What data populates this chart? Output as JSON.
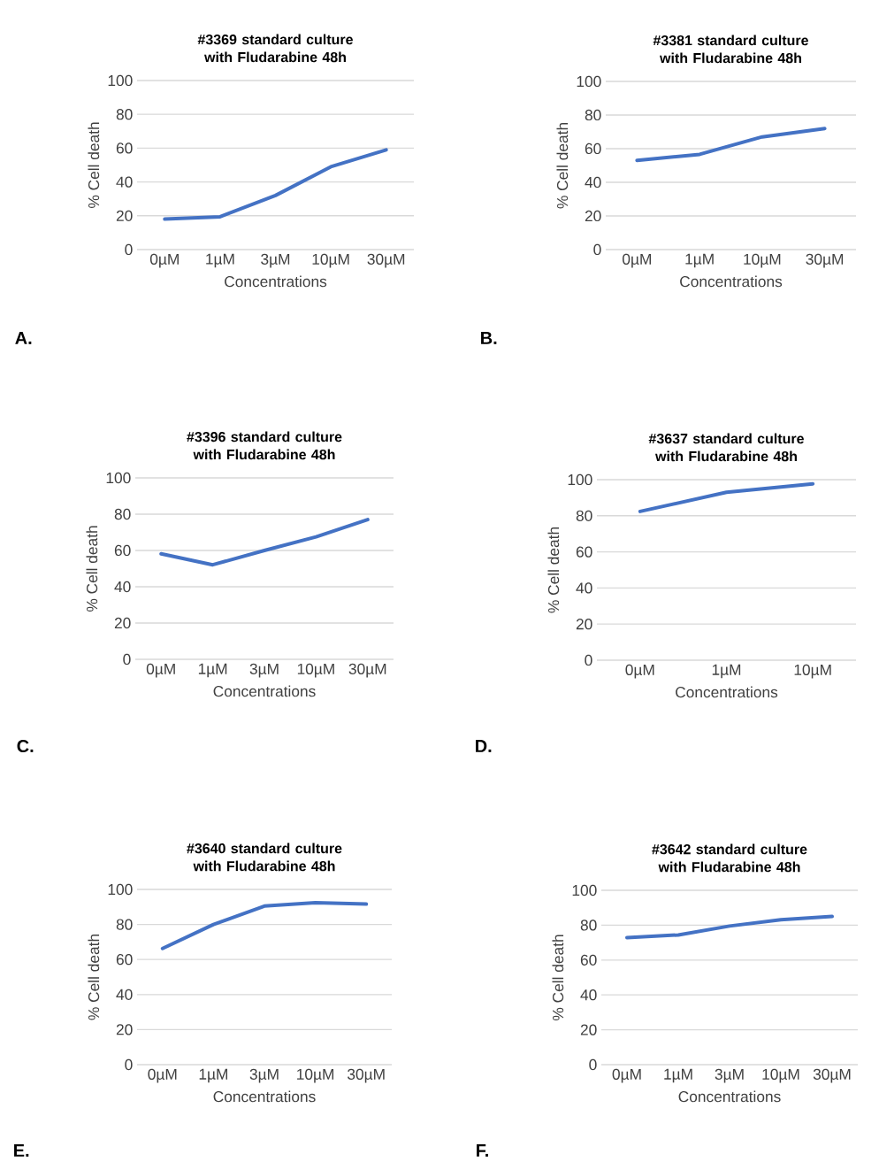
{
  "chart_data": [
    {
      "type": "line",
      "title": "#3369 standard culture with Fludarabine 48h",
      "xlabel": "Concentrations",
      "ylabel": "% Cell death",
      "categories": [
        "0µM",
        "1µM",
        "3µM",
        "10µM",
        "30µM"
      ],
      "series": [
        {
          "color": "#4472c4",
          "values": [
            18,
            19.4,
            32,
            49,
            59
          ]
        }
      ],
      "ylim": [
        0,
        100
      ],
      "yticks": [
        0,
        20,
        40,
        60,
        80,
        100
      ],
      "grid": "y",
      "annotations": [
        "A."
      ]
    },
    {
      "type": "line",
      "title": "#3381 standard culture with Fludarabine 48h",
      "xlabel": "Concentrations",
      "ylabel": "% Cell death",
      "categories": [
        "0µM",
        "1µM",
        "10µM",
        "30µM"
      ],
      "series": [
        {
          "color": "#4472c4",
          "values": [
            53,
            56.6,
            67,
            72
          ]
        }
      ],
      "ylim": [
        0,
        100
      ],
      "yticks": [
        0,
        20,
        40,
        60,
        80,
        100
      ],
      "grid": "y",
      "annotations": [
        "B."
      ]
    },
    {
      "type": "line",
      "title": "#3396 standard culture with Fludarabine 48h",
      "xlabel": "Concentrations",
      "ylabel": "% Cell death",
      "categories": [
        "0µM",
        "1µM",
        "3µM",
        "10µM",
        "30µM"
      ],
      "series": [
        {
          "color": "#4472c4",
          "values": [
            58.2,
            52.1,
            60,
            67.5,
            77
          ]
        }
      ],
      "ylim": [
        0,
        100
      ],
      "yticks": [
        0,
        20,
        40,
        60,
        80,
        100
      ],
      "grid": "y",
      "annotations": [
        "C."
      ]
    },
    {
      "type": "line",
      "title": "#3637 standard culture with Fludarabine 48h",
      "xlabel": "Concentrations",
      "ylabel": "% Cell death",
      "categories": [
        "0µM",
        "1µM",
        "10µM"
      ],
      "series": [
        {
          "color": "#4472c4",
          "values": [
            82.4,
            93,
            97.7
          ]
        }
      ],
      "ylim": [
        0,
        100
      ],
      "yticks": [
        0,
        20,
        40,
        60,
        80,
        100
      ],
      "grid": "y",
      "annotations": [
        "D."
      ]
    },
    {
      "type": "line",
      "title": "#3640 standard culture with Fludarabine 48h",
      "xlabel": "Concentrations",
      "ylabel": "% Cell death",
      "categories": [
        "0µM",
        "1µM",
        "3µM",
        "10µM",
        "30µM"
      ],
      "series": [
        {
          "color": "#4472c4",
          "values": [
            66.3,
            80,
            90.5,
            92.4,
            91.6
          ]
        }
      ],
      "ylim": [
        0,
        100
      ],
      "yticks": [
        0,
        20,
        40,
        60,
        80,
        100
      ],
      "grid": "y",
      "annotations": [
        "E."
      ]
    },
    {
      "type": "line",
      "title": "#3642 standard culture with Fludarabine 48h",
      "xlabel": "Concentrations",
      "ylabel": "% Cell death",
      "categories": [
        "0µM",
        "1µM",
        "3µM",
        "10µM",
        "30µM"
      ],
      "series": [
        {
          "color": "#4472c4",
          "values": [
            72.9,
            74.4,
            79.5,
            83.1,
            85
          ]
        }
      ],
      "ylim": [
        0,
        100
      ],
      "yticks": [
        0,
        20,
        40,
        60,
        80,
        100
      ],
      "grid": "y",
      "annotations": [
        "F."
      ]
    }
  ]
}
